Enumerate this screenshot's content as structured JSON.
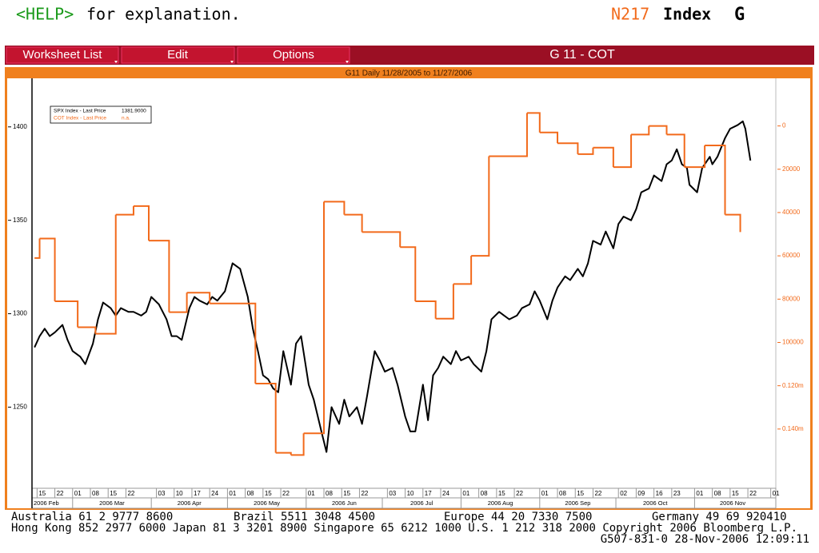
{
  "header": {
    "help_key": "<HELP>",
    "help_text": "for explanation.",
    "ticker": "N217",
    "market": "Index",
    "function": "G"
  },
  "toolbar": {
    "buttons": [
      "Worksheet List",
      "Edit",
      "Options"
    ],
    "title": "G 11 - COT"
  },
  "chart_data": {
    "type": "line",
    "title": "G11 Daily 11/28/2005 to 11/27/2006",
    "series": [
      {
        "name": "SPX Index - Last Price",
        "legend_label": "1381.9000",
        "color": "#000000",
        "x": [
          "2006-02-14",
          "2006-02-16",
          "2006-02-18",
          "2006-02-20",
          "2006-02-22",
          "2006-02-25",
          "2006-02-27",
          "2006-03-01",
          "2006-03-04",
          "2006-03-06",
          "2006-03-09",
          "2006-03-11",
          "2006-03-13",
          "2006-03-16",
          "2006-03-18",
          "2006-03-20",
          "2006-03-23",
          "2006-03-25",
          "2006-03-28",
          "2006-03-30",
          "2006-04-01",
          "2006-04-04",
          "2006-04-07",
          "2006-04-09",
          "2006-04-11",
          "2006-04-13",
          "2006-04-16",
          "2006-04-18",
          "2006-04-20",
          "2006-04-23",
          "2006-04-25",
          "2006-04-27",
          "2006-04-30",
          "2006-05-03",
          "2006-05-06",
          "2006-05-09",
          "2006-05-11",
          "2006-05-13",
          "2006-05-15",
          "2006-05-17",
          "2006-05-19",
          "2006-05-21",
          "2006-05-23",
          "2006-05-26",
          "2006-05-28",
          "2006-05-30",
          "2006-06-02",
          "2006-06-04",
          "2006-06-07",
          "2006-06-09",
          "2006-06-11",
          "2006-06-14",
          "2006-06-16",
          "2006-06-18",
          "2006-06-21",
          "2006-06-23",
          "2006-06-25",
          "2006-06-28",
          "2006-06-30",
          "2006-07-02",
          "2006-07-05",
          "2006-07-07",
          "2006-07-10",
          "2006-07-12",
          "2006-07-14",
          "2006-07-17",
          "2006-07-19",
          "2006-07-21",
          "2006-07-23",
          "2006-07-25",
          "2006-07-28",
          "2006-07-30",
          "2006-08-01",
          "2006-08-04",
          "2006-08-06",
          "2006-08-09",
          "2006-08-11",
          "2006-08-13",
          "2006-08-16",
          "2006-08-18",
          "2006-08-20",
          "2006-08-23",
          "2006-08-25",
          "2006-08-28",
          "2006-08-30",
          "2006-09-01",
          "2006-09-04",
          "2006-09-06",
          "2006-09-08",
          "2006-09-11",
          "2006-09-13",
          "2006-09-16",
          "2006-09-18",
          "2006-09-20",
          "2006-09-22",
          "2006-09-25",
          "2006-09-27",
          "2006-09-30",
          "2006-10-02",
          "2006-10-04",
          "2006-10-07",
          "2006-10-09",
          "2006-10-11",
          "2006-10-14",
          "2006-10-16",
          "2006-10-19",
          "2006-10-21",
          "2006-10-23",
          "2006-10-25",
          "2006-10-27",
          "2006-10-29",
          "2006-10-30",
          "2006-11-02",
          "2006-11-04",
          "2006-11-07",
          "2006-11-08",
          "2006-11-10",
          "2006-11-13",
          "2006-11-15",
          "2006-11-18",
          "2006-11-20",
          "2006-11-21",
          "2006-11-23"
        ],
        "values": [
          1282,
          1288,
          1292,
          1288,
          1290,
          1294,
          1286,
          1280,
          1277,
          1273,
          1284,
          1297,
          1306,
          1303,
          1299,
          1303,
          1301,
          1301,
          1299,
          1301,
          1309,
          1305,
          1297,
          1288,
          1288,
          1286,
          1303,
          1309,
          1307,
          1305,
          1309,
          1307,
          1312,
          1327,
          1324,
          1309,
          1292,
          1280,
          1267,
          1265,
          1260,
          1258,
          1280,
          1262,
          1284,
          1288,
          1262,
          1254,
          1237,
          1226,
          1250,
          1241,
          1254,
          1245,
          1250,
          1241,
          1256,
          1280,
          1275,
          1269,
          1271,
          1262,
          1245,
          1237,
          1237,
          1262,
          1243,
          1267,
          1271,
          1277,
          1273,
          1280,
          1275,
          1277,
          1273,
          1269,
          1280,
          1297,
          1301,
          1299,
          1297,
          1299,
          1303,
          1305,
          1312,
          1307,
          1297,
          1307,
          1314,
          1320,
          1318,
          1324,
          1320,
          1327,
          1339,
          1337,
          1344,
          1335,
          1348,
          1352,
          1350,
          1356,
          1365,
          1367,
          1374,
          1371,
          1380,
          1382,
          1388,
          1380,
          1378,
          1369,
          1365,
          1378,
          1384,
          1380,
          1384,
          1394,
          1399,
          1401,
          1403,
          1399,
          1382
        ]
      },
      {
        "name": "COT Index - Last Price",
        "legend_label": "n.a.",
        "color": "#f26a1b",
        "axis": "y2",
        "step": true,
        "x": [
          "2006-02-14",
          "2006-02-16",
          "2006-02-22",
          "2006-03-03",
          "2006-03-10",
          "2006-03-18",
          "2006-03-25",
          "2006-03-31",
          "2006-04-08",
          "2006-04-15",
          "2006-04-24",
          "2006-05-12",
          "2006-05-20",
          "2006-05-26",
          "2006-05-31",
          "2006-06-08",
          "2006-06-16",
          "2006-06-23",
          "2006-07-08",
          "2006-07-14",
          "2006-07-22",
          "2006-07-29",
          "2006-08-05",
          "2006-08-12",
          "2006-08-27",
          "2006-09-01",
          "2006-09-08",
          "2006-09-16",
          "2006-09-22",
          "2006-09-30",
          "2006-10-07",
          "2006-10-14",
          "2006-10-21",
          "2006-10-28",
          "2006-11-05",
          "2006-11-13",
          "2006-11-19"
        ],
        "values": [
          61000,
          52000,
          81000,
          93000,
          96000,
          41000,
          37000,
          53000,
          86000,
          77000,
          82000,
          119000,
          151000,
          152000,
          142000,
          35000,
          41000,
          49000,
          56000,
          81000,
          89000,
          73000,
          60000,
          14000,
          -6000,
          3000,
          8000,
          13000,
          10000,
          19000,
          4000,
          0,
          4000,
          19000,
          9000,
          41000,
          49000
        ]
      }
    ],
    "xlim": [
      "2006-02-13",
      "2006-12-03"
    ],
    "xticks": [
      {
        "value": "2006-02-15",
        "label": "15"
      },
      {
        "value": "2006-02-22",
        "label": "22"
      },
      {
        "value": "2006-03-01",
        "label": "01"
      },
      {
        "value": "2006-03-08",
        "label": "08"
      },
      {
        "value": "2006-03-15",
        "label": "15"
      },
      {
        "value": "2006-03-22",
        "label": "22"
      },
      {
        "value": "2006-04-03",
        "label": "03"
      },
      {
        "value": "2006-04-10",
        "label": "10"
      },
      {
        "value": "2006-04-17",
        "label": "17"
      },
      {
        "value": "2006-04-24",
        "label": "24"
      },
      {
        "value": "2006-05-01",
        "label": "01"
      },
      {
        "value": "2006-05-08",
        "label": "08"
      },
      {
        "value": "2006-05-15",
        "label": "15"
      },
      {
        "value": "2006-05-22",
        "label": "22"
      },
      {
        "value": "2006-06-01",
        "label": "01"
      },
      {
        "value": "2006-06-08",
        "label": "08"
      },
      {
        "value": "2006-06-15",
        "label": "15"
      },
      {
        "value": "2006-06-22",
        "label": "22"
      },
      {
        "value": "2006-07-03",
        "label": "03"
      },
      {
        "value": "2006-07-10",
        "label": "10"
      },
      {
        "value": "2006-07-17",
        "label": "17"
      },
      {
        "value": "2006-07-24",
        "label": "24"
      },
      {
        "value": "2006-08-01",
        "label": "01"
      },
      {
        "value": "2006-08-08",
        "label": "08"
      },
      {
        "value": "2006-08-15",
        "label": "15"
      },
      {
        "value": "2006-08-22",
        "label": "22"
      },
      {
        "value": "2006-09-01",
        "label": "01"
      },
      {
        "value": "2006-09-08",
        "label": "08"
      },
      {
        "value": "2006-09-15",
        "label": "15"
      },
      {
        "value": "2006-09-22",
        "label": "22"
      },
      {
        "value": "2006-10-02",
        "label": "02"
      },
      {
        "value": "2006-10-09",
        "label": "09"
      },
      {
        "value": "2006-10-16",
        "label": "16"
      },
      {
        "value": "2006-10-23",
        "label": "23"
      },
      {
        "value": "2006-11-01",
        "label": "01"
      },
      {
        "value": "2006-11-08",
        "label": "08"
      },
      {
        "value": "2006-11-15",
        "label": "15"
      },
      {
        "value": "2006-11-22",
        "label": "22"
      },
      {
        "value": "2006-12-01",
        "label": "01"
      }
    ],
    "xticks_month": [
      {
        "value": "2006-02-01",
        "label": "2006 Feb"
      },
      {
        "value": "2006-03-01",
        "label": "2006 Mar"
      },
      {
        "value": "2006-04-01",
        "label": "2006 Apr"
      },
      {
        "value": "2006-05-01",
        "label": "2006 May"
      },
      {
        "value": "2006-06-01",
        "label": "2006 Jun"
      },
      {
        "value": "2006-07-01",
        "label": "2006 Jul"
      },
      {
        "value": "2006-08-01",
        "label": "2006 Aug"
      },
      {
        "value": "2006-09-01",
        "label": "2006 Sep"
      },
      {
        "value": "2006-10-01",
        "label": "2006 Oct"
      },
      {
        "value": "2006-11-01",
        "label": "2006 Nov"
      }
    ],
    "ylim": [
      1207,
      1426
    ],
    "yticks": [
      1250,
      1300,
      1350,
      1400
    ],
    "y2lim": [
      -22000,
      167000
    ],
    "y2_inverted": true,
    "y2ticks": [
      0,
      20000,
      40000,
      60000,
      80000,
      100000,
      {
        "value": 120000,
        "label": "0.120m"
      },
      {
        "value": 140000,
        "label": "0.140m"
      }
    ],
    "grid": false,
    "legend": "upper left"
  },
  "footer": {
    "line1": [
      "Australia 61 2 9777 8600",
      "Brazil 5511 3048 4500",
      "Europe 44 20 7330 7500",
      "Germany 49 69 920410"
    ],
    "line2": "Hong Kong 852 2977 6000 Japan 81 3 3201 8900 Singapore 65 6212 1000 U.S. 1 212 318 2000 Copyright 2006 Bloomberg L.P.",
    "line3": "G507-831-0 28-Nov-2006 12:09:11"
  }
}
